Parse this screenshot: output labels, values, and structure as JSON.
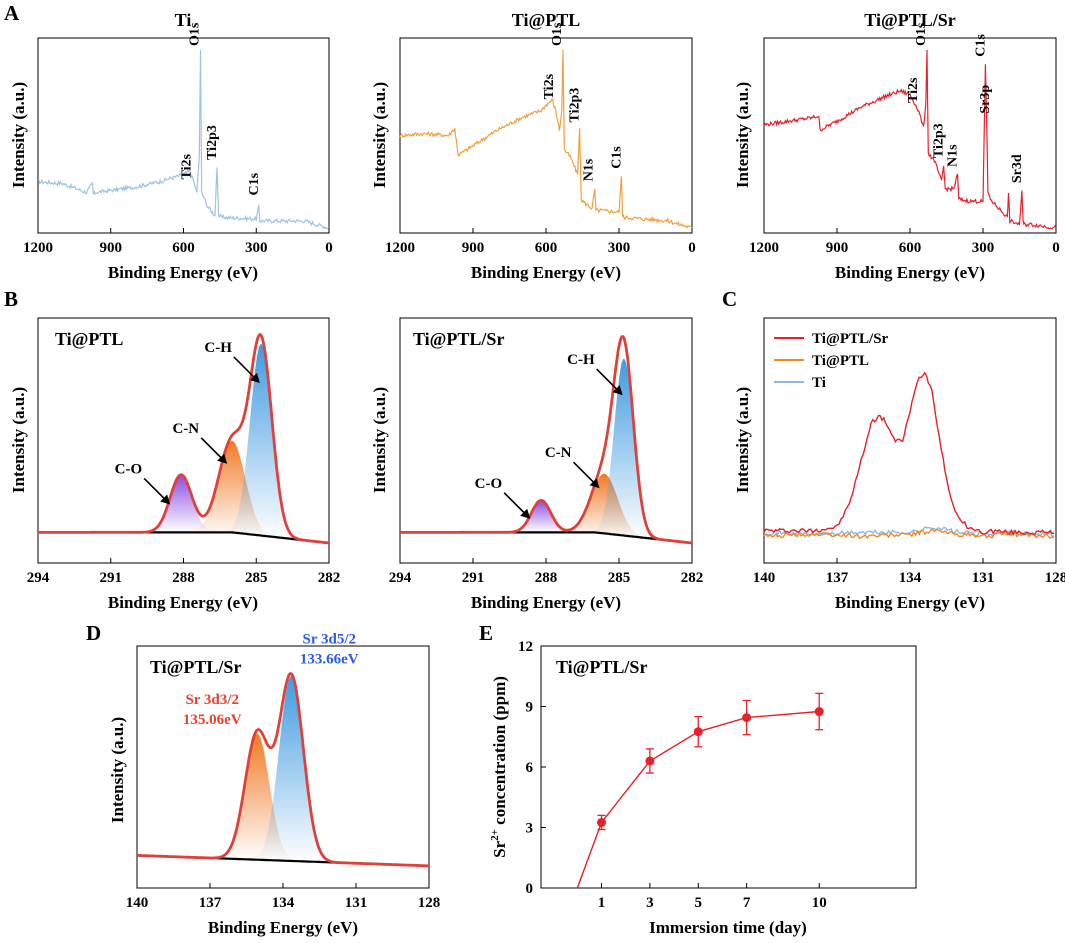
{
  "figure": {
    "panel_letters": [
      "A",
      "B",
      "C",
      "D",
      "E"
    ]
  },
  "chart_data": [
    {
      "id": "A1",
      "type": "line",
      "title": "Ti",
      "xlabel": "Binding Energy (eV)",
      "ylabel": "Intensity (a.u.)",
      "xlim": [
        1200,
        0
      ],
      "xticks": [
        1200,
        900,
        600,
        300,
        0
      ],
      "ylim": [
        0,
        100
      ],
      "color": "#9cc3e8",
      "series": [
        {
          "name": "Ti",
          "x": [
            1200,
            1100,
            1000,
            975,
            972,
            960,
            800,
            700,
            600,
            575,
            560,
            545,
            535,
            530,
            525,
            500,
            470,
            462,
            455,
            440,
            300,
            290,
            285,
            280,
            100,
            0
          ],
          "y": [
            26,
            25,
            20,
            25,
            19,
            20,
            23,
            26,
            30,
            32,
            27,
            20,
            40,
            100,
            20,
            12,
            7,
            34,
            7,
            6,
            5,
            12,
            4,
            4,
            4,
            0
          ]
        }
      ],
      "peak_labels": [
        {
          "text": "Ti2s",
          "x": 562,
          "y": 25
        },
        {
          "text": "O1s",
          "x": 530,
          "y": 100
        },
        {
          "text": "Ti2p3",
          "x": 458,
          "y": 36
        },
        {
          "text": "C1s",
          "x": 285,
          "y": 16
        }
      ]
    },
    {
      "id": "A2",
      "type": "line",
      "title": "Ti@PTL",
      "xlabel": "Binding Energy (eV)",
      "ylabel": "Intensity (a.u.)",
      "xlim": [
        1200,
        0
      ],
      "xticks": [
        1200,
        900,
        600,
        300,
        0
      ],
      "ylim": [
        0,
        100
      ],
      "color": "#f0a040",
      "series": [
        {
          "name": "Ti@PTL",
          "x": [
            1200,
            1100,
            1000,
            975,
            970,
            960,
            800,
            700,
            620,
            600,
            575,
            560,
            545,
            535,
            530,
            525,
            500,
            470,
            462,
            455,
            440,
            410,
            400,
            395,
            300,
            290,
            285,
            280,
            100,
            0
          ],
          "y": [
            52,
            53,
            52,
            56,
            50,
            41,
            55,
            62,
            66,
            69,
            72,
            66,
            55,
            66,
            100,
            44,
            40,
            30,
            56,
            16,
            14,
            11,
            22,
            10,
            9,
            29,
            7,
            6,
            4,
            0
          ]
        }
      ],
      "peak_labels": [
        {
          "text": "Ti2s",
          "x": 562,
          "y": 70
        },
        {
          "text": "O1s",
          "x": 530,
          "y": 100
        },
        {
          "text": "Ti2p3",
          "x": 458,
          "y": 57
        },
        {
          "text": "N1s",
          "x": 400,
          "y": 24
        },
        {
          "text": "C1s",
          "x": 285,
          "y": 31
        }
      ]
    },
    {
      "id": "A3",
      "type": "line",
      "title": "Ti@PTL/Sr",
      "xlabel": "Binding Energy (eV)",
      "ylabel": "Intensity (a.u.)",
      "xlim": [
        1200,
        0
      ],
      "xticks": [
        1200,
        900,
        600,
        300,
        0
      ],
      "ylim": [
        0,
        100
      ],
      "color": "#e8202a",
      "series": [
        {
          "name": "Ti@PTL/Sr",
          "x": [
            1200,
            1100,
            1000,
            975,
            970,
            900,
            800,
            700,
            640,
            600,
            580,
            560,
            545,
            535,
            530,
            525,
            500,
            470,
            462,
            455,
            420,
            405,
            400,
            395,
            350,
            300,
            290,
            285,
            280,
            270,
            200,
            195,
            190,
            150,
            140,
            135,
            130,
            100,
            0
          ],
          "y": [
            58,
            60,
            62,
            63,
            55,
            60,
            68,
            74,
            77,
            75,
            70,
            64,
            56,
            70,
            100,
            42,
            38,
            26,
            35,
            22,
            22,
            30,
            17,
            16,
            15,
            15,
            92,
            62,
            20,
            16,
            6,
            19,
            4,
            2,
            21,
            3,
            2,
            2,
            0
          ]
        }
      ],
      "peak_labels": [
        {
          "text": "Ti2s",
          "x": 562,
          "y": 68
        },
        {
          "text": "O1s",
          "x": 530,
          "y": 100
        },
        {
          "text": "Ti2p3",
          "x": 458,
          "y": 37
        },
        {
          "text": "N1s",
          "x": 400,
          "y": 32
        },
        {
          "text": "C1s",
          "x": 285,
          "y": 94
        },
        {
          "text": "Sr3p",
          "x": 268,
          "y": 62
        },
        {
          "text": "Sr3d",
          "x": 135,
          "y": 23
        }
      ]
    },
    {
      "id": "B1",
      "type": "line",
      "title": "Ti@PTL",
      "xlabel": "Binding Energy (eV)",
      "ylabel": "Intensity (a.u.)",
      "xlim": [
        294,
        282
      ],
      "xticks": [
        294,
        291,
        288,
        285,
        282
      ],
      "ylim": [
        0,
        100
      ],
      "envelope_color": "#e0403a",
      "baseline_color": "#000000",
      "baseline": [
        [
          294,
          5
        ],
        [
          286,
          5
        ],
        [
          282,
          0
        ]
      ],
      "components": [
        {
          "name": "C-O",
          "center": 288.1,
          "height": 27,
          "sigma": 0.45,
          "color": "#8a4de0"
        },
        {
          "name": "C-N",
          "center": 286.0,
          "height": 43,
          "sigma": 0.55,
          "color": "#f07a25"
        },
        {
          "name": "C-H",
          "center": 284.8,
          "height": 90,
          "sigma": 0.45,
          "color": "#3f9ae0"
        }
      ],
      "annotations": [
        {
          "text": "C-O",
          "target": 288.1
        },
        {
          "text": "C-N",
          "target": 286.0
        },
        {
          "text": "C-H",
          "target": 284.8
        }
      ],
      "inset_label": "Ti@PTL"
    },
    {
      "id": "B2",
      "type": "line",
      "title": "Ti@PTL/Sr",
      "xlabel": "Binding Energy (eV)",
      "ylabel": "Intensity (a.u.)",
      "xlim": [
        294,
        282
      ],
      "xticks": [
        294,
        291,
        288,
        285,
        282
      ],
      "ylim": [
        0,
        100
      ],
      "envelope_color": "#e0403a",
      "baseline_color": "#000000",
      "baseline": [
        [
          294,
          5
        ],
        [
          286,
          5
        ],
        [
          282,
          0
        ]
      ],
      "components": [
        {
          "name": "C-O",
          "center": 288.2,
          "height": 15,
          "sigma": 0.4,
          "color": "#8a4de0"
        },
        {
          "name": "C-N",
          "center": 285.6,
          "height": 28,
          "sigma": 0.55,
          "color": "#f07a25"
        },
        {
          "name": "C-H",
          "center": 284.8,
          "height": 83,
          "sigma": 0.4,
          "color": "#3f9ae0"
        }
      ],
      "annotations": [
        {
          "text": "C-O",
          "target": 288.2
        },
        {
          "text": "C-N",
          "target": 285.6
        },
        {
          "text": "C-H",
          "target": 284.8
        }
      ],
      "inset_label": "Ti@PTL/Sr"
    },
    {
      "id": "C",
      "type": "line",
      "xlabel": "Binding Energy (eV)",
      "ylabel": "Intensity (a.u.)",
      "xlim": [
        140,
        128
      ],
      "xticks": [
        140,
        137,
        134,
        131,
        128
      ],
      "ylim": [
        0,
        100
      ],
      "legend": "top-left",
      "series": [
        {
          "name": "Ti@PTL/Sr",
          "color": "#e8202a",
          "x": [
            140,
            138,
            137,
            136.5,
            136,
            135.6,
            135.3,
            135.0,
            134.6,
            134.3,
            134.0,
            133.7,
            133.4,
            133.1,
            132.8,
            132.4,
            132.0,
            131.5,
            131.0,
            130.5,
            130,
            128
          ],
          "y": [
            4,
            4,
            6,
            18,
            42,
            62,
            66,
            63,
            52,
            53,
            68,
            85,
            90,
            80,
            55,
            25,
            10,
            5,
            3,
            4,
            3,
            3
          ]
        },
        {
          "name": "Ti@PTL",
          "color": "#f08a20",
          "x": [
            140,
            138,
            136,
            134,
            133,
            132,
            131,
            130,
            128
          ],
          "y": [
            1,
            2,
            1,
            2,
            4,
            2,
            1,
            2,
            1
          ]
        },
        {
          "name": "Ti",
          "color": "#8ab8e8",
          "x": [
            140,
            138,
            136,
            134,
            133,
            132,
            131,
            130,
            128
          ],
          "y": [
            3,
            2,
            3,
            3,
            6,
            3,
            2,
            3,
            2
          ]
        }
      ]
    },
    {
      "id": "D",
      "type": "line",
      "xlabel": "Binding Energy (eV)",
      "ylabel": "Intensity (a.u.)",
      "xlim": [
        140,
        128
      ],
      "xticks": [
        140,
        137,
        134,
        131,
        128
      ],
      "ylim": [
        0,
        100
      ],
      "envelope_color": "#e0403a",
      "baseline_color": "#000000",
      "baseline": [
        [
          140,
          6
        ],
        [
          128,
          1
        ]
      ],
      "components": [
        {
          "name": "Sr 3d3/2",
          "center": 135.06,
          "height": 60,
          "sigma": 0.5,
          "color": "#f07a25"
        },
        {
          "name": "Sr 3d5/2",
          "center": 133.66,
          "height": 88,
          "sigma": 0.5,
          "color": "#3f9ae0"
        }
      ],
      "peak_labels": [
        {
          "line1": "Sr 3d3/2",
          "line2": "135.06eV",
          "color": "#e8402a"
        },
        {
          "line1": "Sr 3d5/2",
          "line2": "133.66eV",
          "color": "#2a5ae8"
        }
      ],
      "inset_label": "Ti@PTL/Sr"
    },
    {
      "id": "E",
      "type": "line",
      "xlabel": "Immersion time (day)",
      "ylabel": "Sr 2+ concentration (ppm)",
      "ylabel_parts": [
        "Sr",
        "2+",
        " concentration (ppm)"
      ],
      "xlim": [
        -1.5,
        14
      ],
      "xticks": [
        1,
        3,
        5,
        7,
        10
      ],
      "ylim": [
        0,
        12
      ],
      "yticks": [
        0,
        3,
        6,
        9,
        12
      ],
      "color": "#e8202a",
      "series": [
        {
          "name": "Ti@PTL/Sr",
          "x": [
            0,
            1,
            3,
            5,
            7,
            10
          ],
          "y": [
            0,
            3.25,
            6.3,
            7.75,
            8.45,
            8.75
          ],
          "err": [
            0,
            0.35,
            0.6,
            0.75,
            0.85,
            0.9
          ]
        }
      ],
      "inset_label": "Ti@PTL/Sr"
    }
  ]
}
